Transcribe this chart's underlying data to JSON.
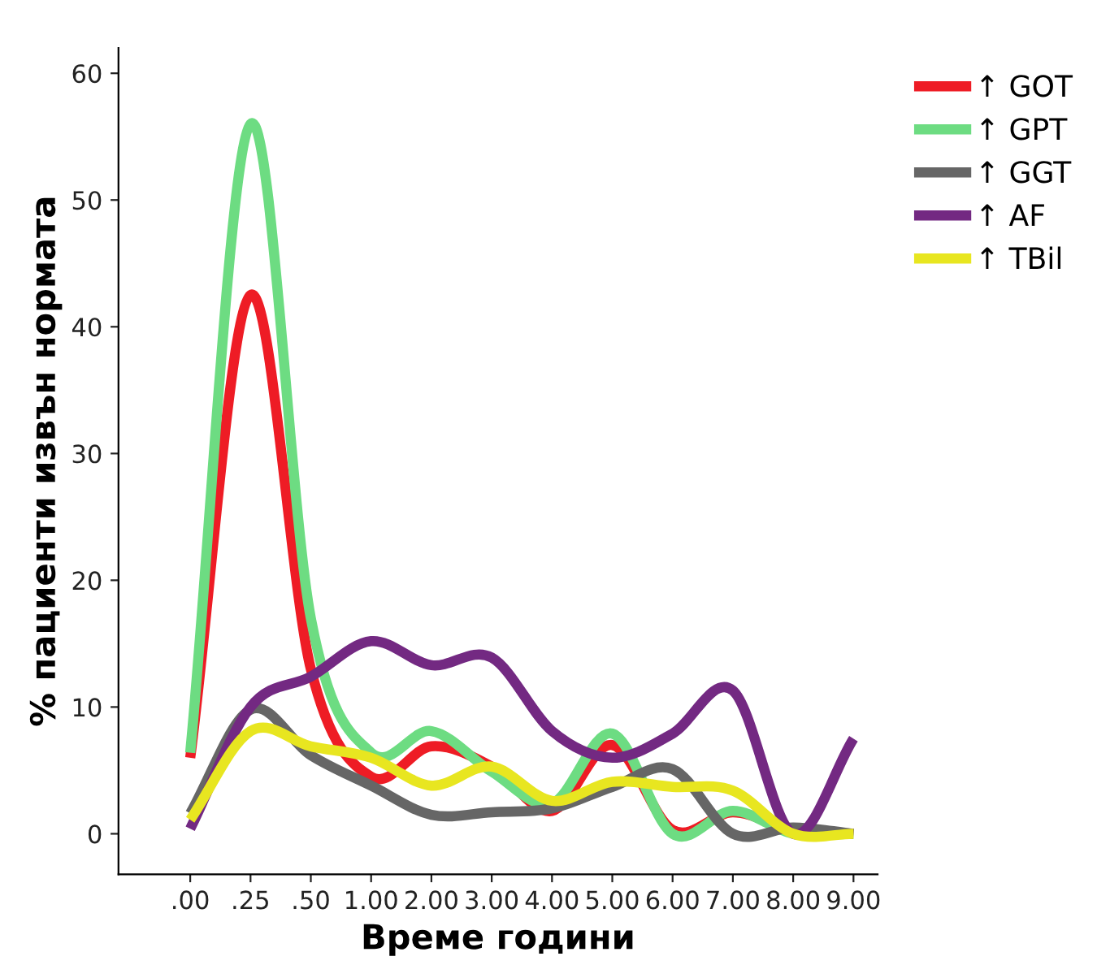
{
  "chart_data": {
    "type": "line",
    "xlabel": "Време години",
    "ylabel": "% пациенти извън нормата",
    "categories": [
      ".00",
      ".25",
      ".50",
      "1.00",
      "2.00",
      "3.00",
      "4.00",
      "5.00",
      "6.00",
      "7.00",
      "8.00",
      "9.00"
    ],
    "series": [
      {
        "name": "↑ GOT",
        "color": "#ee1c25",
        "values": [
          6.0,
          42.5,
          13,
          4.5,
          6.9,
          5.3,
          1.8,
          7.0,
          0.3,
          1.7,
          0.3,
          0
        ]
      },
      {
        "name": "↑ GPT",
        "color": "#6ddc82",
        "values": [
          6.4,
          56,
          17,
          6.4,
          8.1,
          4.9,
          2.4,
          7.9,
          0,
          1.8,
          0,
          0
        ]
      },
      {
        "name": "↑ GGT",
        "color": "#666666",
        "values": [
          1.6,
          9.8,
          6.2,
          3.8,
          1.5,
          1.7,
          2.0,
          3.7,
          5.1,
          0,
          0.5,
          0
        ]
      },
      {
        "name": "↑ AF",
        "color": "#732982",
        "values": [
          0.4,
          10.0,
          12.4,
          15.2,
          13.3,
          13.9,
          8.1,
          6.0,
          7.9,
          11.3,
          0,
          7.5
        ]
      },
      {
        "name": "↑ TBil",
        "color": "#e8e620",
        "values": [
          1.1,
          8.1,
          6.9,
          6.0,
          3.8,
          5.3,
          2.6,
          4.1,
          3.7,
          3.4,
          0,
          0
        ]
      }
    ],
    "ylim": [
      -3.2,
      62
    ],
    "yticks": [
      0,
      10,
      20,
      30,
      40,
      50,
      60
    ],
    "grid": false,
    "legend": "top right",
    "marker": "none",
    "line_style": "solid"
  }
}
